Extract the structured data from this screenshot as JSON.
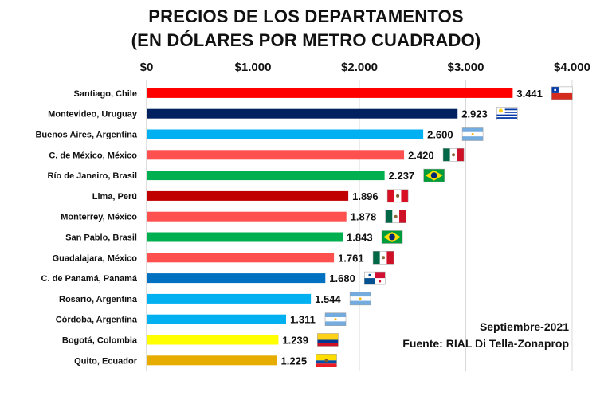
{
  "chart_data": {
    "type": "bar",
    "orientation": "horizontal",
    "title_line1": "PRECIOS DE LOS DEPARTAMENTOS",
    "title_line2": "(EN DÓLARES POR METRO CUADRADO)",
    "xlabel": "",
    "ylabel": "",
    "xlim": [
      0,
      4000
    ],
    "grid": true,
    "x_ticks": [
      0,
      1000,
      2000,
      3000,
      4000
    ],
    "x_tick_labels": [
      "$0",
      "$1.000",
      "$2.000",
      "$3.000",
      "$4.000"
    ],
    "categories": [
      "Santiago, Chile",
      "Montevideo, Uruguay",
      "Buenos Aires, Argentina",
      "C. de México, México",
      "Río de Janeiro, Brasil",
      "Lima, Perú",
      "Monterrey, México",
      "San Pablo, Brasil",
      "Guadalajara, México",
      "C. de Panamá, Panamá",
      "Rosario, Argentina",
      "Córdoba, Argentina",
      "Bogotá, Colombia",
      "Quito, Ecuador"
    ],
    "values": [
      3441,
      2923,
      2600,
      2420,
      2237,
      1896,
      1878,
      1843,
      1761,
      1680,
      1544,
      1311,
      1239,
      1225
    ],
    "value_labels": [
      "3.441",
      "2.923",
      "2.600",
      "2.420",
      "2.237",
      "1.896",
      "1.878",
      "1.843",
      "1.761",
      "1.680",
      "1.544",
      "1.311",
      "1.239",
      "1.225"
    ],
    "bar_colors": [
      "#ff0000",
      "#002060",
      "#00b0f0",
      "#ff5050",
      "#00b050",
      "#c00000",
      "#ff5050",
      "#00b050",
      "#ff5050",
      "#0070c0",
      "#00b0f0",
      "#00b0f0",
      "#ffff00",
      "#e6ac00"
    ],
    "flags": [
      "chile",
      "uruguay",
      "argentina",
      "mexico",
      "brazil",
      "peru",
      "mexico",
      "brazil",
      "mexico",
      "panama",
      "argentina",
      "argentina",
      "colombia",
      "ecuador"
    ]
  },
  "notes": {
    "date": "Septiembre-2021",
    "source": "Fuente: RIAL Di Tella-Zonaprop"
  }
}
